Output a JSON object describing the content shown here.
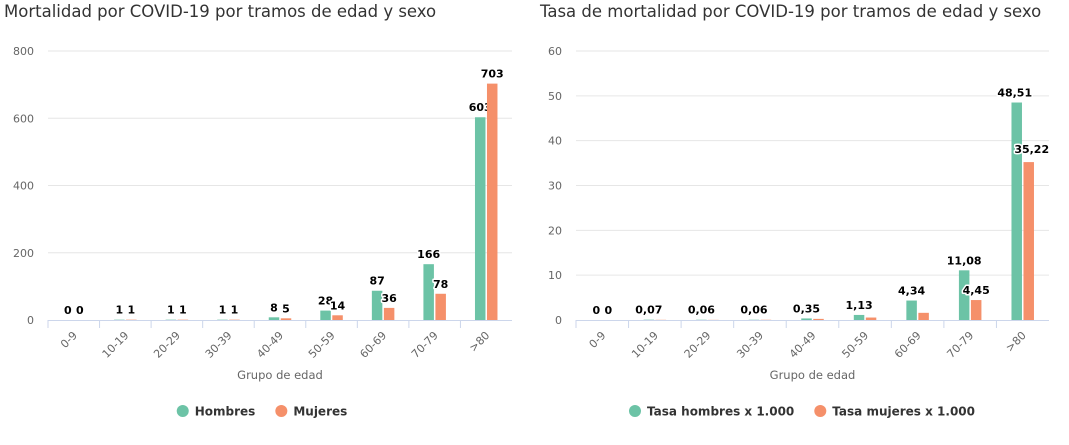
{
  "charts": [
    {
      "title": "Mortalidad por COVID-19 por tramos de edad y sexo",
      "xlabel": "Grupo de edad",
      "ylabel": "",
      "legend": [
        {
          "label": "Hombres",
          "color": "#6cc3a6"
        },
        {
          "label": "Mujeres",
          "color": "#f5906a"
        }
      ]
    },
    {
      "title": "Tasa de mortalidad por COVID-19 por tramos de edad y sexo",
      "xlabel": "Grupo de edad",
      "ylabel": "",
      "legend": [
        {
          "label": "Tasa hombres x 1.000",
          "color": "#6cc3a6"
        },
        {
          "label": "Tasa mujeres x 1.000",
          "color": "#f5906a"
        }
      ]
    }
  ],
  "chart_data": [
    {
      "type": "bar",
      "title": "Mortalidad por COVID-19 por tramos de edad y sexo",
      "xlabel": "Grupo de edad",
      "ylabel": "",
      "categories": [
        "0-9",
        "10-19",
        "20-29",
        "30-39",
        "40-49",
        "50-59",
        "60-69",
        "70-79",
        ">80"
      ],
      "ylim": [
        0,
        800
      ],
      "yticks": [
        0,
        200,
        400,
        600,
        800
      ],
      "ytick_labels": [
        "0",
        "200",
        "400",
        "600",
        "800"
      ],
      "grid": true,
      "legend_position": "bottom-center",
      "series": [
        {
          "name": "Hombres",
          "color": "#6cc3a6",
          "values": [
            0,
            1,
            1,
            1,
            8,
            28,
            87,
            166,
            603
          ],
          "labels": [
            "0",
            "1",
            "1",
            "1",
            "8",
            "28",
            "87",
            "166",
            "603"
          ]
        },
        {
          "name": "Mujeres",
          "color": "#f5906a",
          "values": [
            0,
            1,
            1,
            1,
            5,
            14,
            36,
            78,
            703
          ],
          "labels": [
            "0",
            "1",
            "1",
            "1",
            "5",
            "14",
            "36",
            "78",
            "703"
          ]
        }
      ]
    },
    {
      "type": "bar",
      "title": "Tasa de mortalidad por COVID-19 por tramos de edad y sexo",
      "xlabel": "Grupo de edad",
      "ylabel": "",
      "categories": [
        "0-9",
        "10-19",
        "20-29",
        "30-39",
        "40-49",
        "50-59",
        "60-69",
        "70-79",
        ">80"
      ],
      "ylim": [
        0,
        60
      ],
      "yticks": [
        0,
        10,
        20,
        30,
        40,
        50,
        60
      ],
      "ytick_labels": [
        "0",
        "10",
        "20",
        "30",
        "40",
        "50",
        "60"
      ],
      "grid": true,
      "legend_position": "bottom-center",
      "series": [
        {
          "name": "Tasa hombres x 1.000",
          "color": "#6cc3a6",
          "values": [
            0,
            0.07,
            0.06,
            0.06,
            0.35,
            1.13,
            4.34,
            11.08,
            48.51
          ],
          "labels": [
            "0",
            "0,07",
            "0,06",
            "0,06",
            "0,35",
            "1,13",
            "4,34",
            "11,08",
            "48,51"
          ]
        },
        {
          "name": "Tasa mujeres x 1.000",
          "color": "#f5906a",
          "values": [
            0,
            0.04,
            0.03,
            0.05,
            0.25,
            0.55,
            1.6,
            4.45,
            35.22
          ],
          "labels": [
            "0",
            "",
            "",
            "",
            "",
            "",
            "",
            "4,45",
            "35,22"
          ]
        }
      ]
    }
  ]
}
